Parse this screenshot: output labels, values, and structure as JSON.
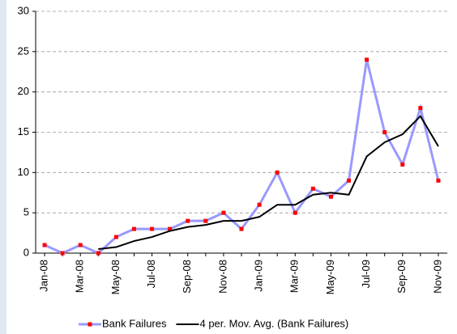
{
  "chart_data": {
    "type": "line",
    "categories": [
      "Jan-08",
      null,
      "Mar-08",
      null,
      "May-08",
      null,
      "Jul-08",
      null,
      "Sep-08",
      null,
      "Nov-08",
      null,
      "Jan-09",
      null,
      "Mar-09",
      null,
      "May-09",
      null,
      "Jul-09",
      null,
      "Sep-09",
      null,
      "Nov-09"
    ],
    "series": [
      {
        "name": "Bank Failures",
        "color": "#9999ff",
        "marker_color": "#ff0000",
        "values": [
          1,
          0,
          1,
          0,
          2,
          3,
          3,
          3,
          4,
          4,
          5,
          3,
          6,
          10,
          5,
          8,
          7,
          9,
          24,
          15,
          11,
          18,
          9
        ]
      },
      {
        "name": "4 per. Mov. Avg. (Bank Failures)",
        "color": "#000000",
        "values": [
          null,
          null,
          null,
          0.5,
          0.75,
          1.5,
          2,
          2.75,
          3.25,
          3.5,
          4,
          4,
          4.5,
          6,
          6,
          7.25,
          7.5,
          7.25,
          12,
          13.75,
          14.75,
          17,
          13.25
        ]
      }
    ],
    "ylim": [
      0,
      30
    ],
    "yticks": [
      0,
      5,
      10,
      15,
      20,
      25,
      30
    ],
    "grid": true
  }
}
